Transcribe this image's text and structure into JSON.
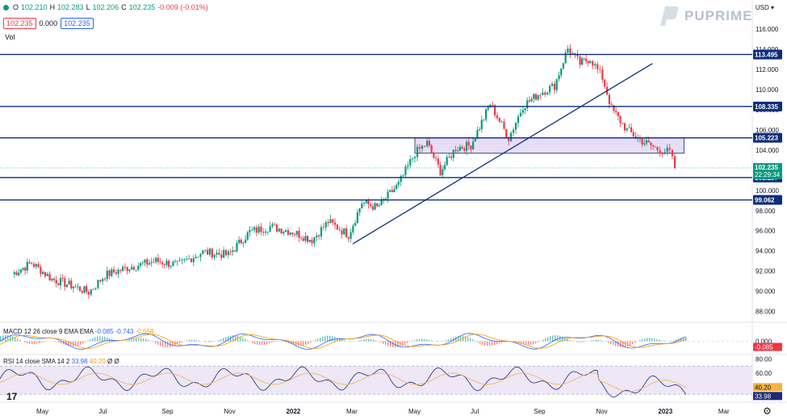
{
  "header": {
    "ohlc": {
      "o": "102.210",
      "h": "102.283",
      "l": "102.206",
      "c": "102.235",
      "change": "-0.009 (-0.01%)"
    },
    "bid": "102.235",
    "spread": "0.000",
    "ask": "102.235",
    "volume_label": "Vol",
    "currency": "USD",
    "brand": "PUPRIME"
  },
  "colors": {
    "up": "#089981",
    "down": "#f23645",
    "level_line": "#0d2e7a",
    "zone_fill": "#e5d8f5",
    "rsi_band": "#ede7f6",
    "macd_blue": "#2962ff",
    "macd_orange": "#ff9800"
  },
  "chart_data": [
    {
      "type": "candlestick",
      "title": "",
      "x_ticks": [
        "May",
        "Jul",
        "Sep",
        "Nov",
        "2022",
        "Mar",
        "May",
        "Jul",
        "Sep",
        "Nov",
        "2023",
        "Mar"
      ],
      "y_ticks": [
        "88.000",
        "90.000",
        "92.000",
        "94.000",
        "96.000",
        "98.000",
        "100.000",
        "102.000",
        "104.000",
        "106.000",
        "108.000",
        "110.000",
        "112.000",
        "114.000",
        "116.000"
      ],
      "ylim": [
        87,
        116.5
      ],
      "close_path_points": [
        [
          "2021-04-01",
          91.7
        ],
        [
          "2021-04-20",
          92.8
        ],
        [
          "2021-05-10",
          91.2
        ],
        [
          "2021-05-31",
          90.5
        ],
        [
          "2021-06-15",
          89.9
        ],
        [
          "2021-07-01",
          91.6
        ],
        [
          "2021-07-25",
          92.4
        ],
        [
          "2021-08-20",
          93.0
        ],
        [
          "2021-09-10",
          92.6
        ],
        [
          "2021-10-05",
          93.9
        ],
        [
          "2021-10-30",
          93.6
        ],
        [
          "2021-11-20",
          95.9
        ],
        [
          "2021-12-10",
          96.4
        ],
        [
          "2022-01-01",
          95.9
        ],
        [
          "2022-01-20",
          95.1
        ],
        [
          "2022-02-05",
          96.9
        ],
        [
          "2022-02-25",
          95.6
        ],
        [
          "2022-03-10",
          98.8
        ],
        [
          "2022-03-25",
          98.3
        ],
        [
          "2022-04-15",
          100.6
        ],
        [
          "2022-05-01",
          103.7
        ],
        [
          "2022-05-13",
          104.7
        ],
        [
          "2022-05-26",
          101.9
        ],
        [
          "2022-06-10",
          104.2
        ],
        [
          "2022-06-25",
          104.5
        ],
        [
          "2022-07-14",
          108.6
        ],
        [
          "2022-08-01",
          105.2
        ],
        [
          "2022-08-15",
          108.4
        ],
        [
          "2022-09-01",
          109.7
        ],
        [
          "2022-09-15",
          110.4
        ],
        [
          "2022-09-28",
          114.1
        ],
        [
          "2022-10-10",
          112.6
        ],
        [
          "2022-10-20",
          113.1
        ],
        [
          "2022-11-01",
          111.2
        ],
        [
          "2022-11-10",
          108.1
        ],
        [
          "2022-11-25",
          106.0
        ],
        [
          "2022-12-10",
          104.9
        ],
        [
          "2022-12-25",
          104.1
        ],
        [
          "2023-01-06",
          103.8
        ],
        [
          "2023-01-11",
          102.235
        ]
      ],
      "horizontal_levels": [
        113.495,
        108.335,
        105.223,
        101.287,
        99.062
      ],
      "level_labels": [
        "113.495",
        "108.335",
        "105.223",
        "101.287",
        "99.062"
      ],
      "zone": {
        "from": "2022-05-01",
        "to": "2023-01-20",
        "low": 103.7,
        "high": 105.223
      },
      "trendline": {
        "from": [
          "2022-03-01",
          94.7
        ],
        "to": [
          "2022-12-20",
          112.6
        ]
      },
      "last_price": {
        "value": "102.235",
        "countdown": "22:29:34"
      }
    },
    {
      "type": "histogram",
      "title": "MACD 12 26 close 9 EMA EMA",
      "values_text": [
        "-0.085",
        "-0.743",
        "-0.658"
      ],
      "last_label": "-0.085",
      "y_tick": "0.000"
    },
    {
      "type": "line",
      "title": "RSI 14 close SMA 14 2",
      "values_text": [
        "33.98",
        "40.20",
        "Ø",
        "Ø"
      ],
      "y_ticks": [
        "80.00",
        "60.00"
      ],
      "labels": {
        "rsi": "33.98",
        "sma": "40.20"
      },
      "bands": [
        70,
        30
      ]
    }
  ]
}
